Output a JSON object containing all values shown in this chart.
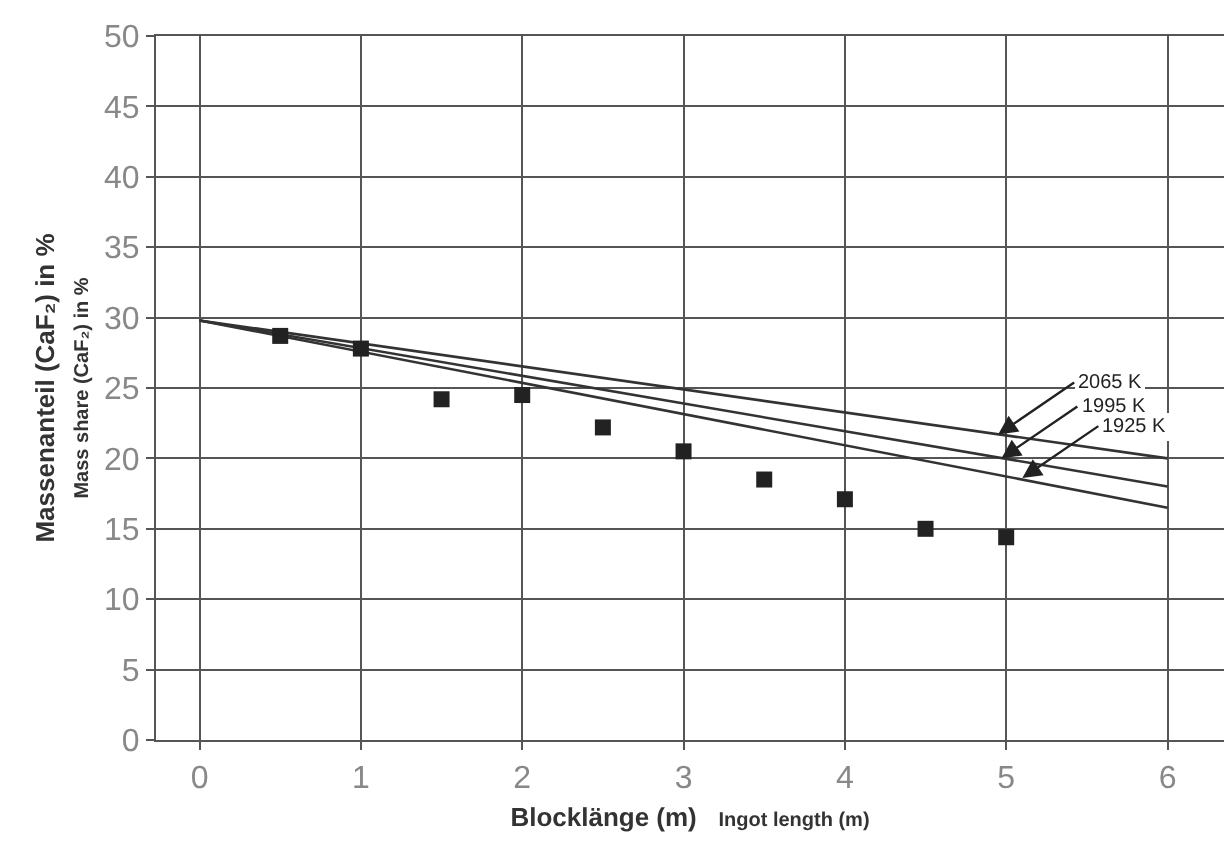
{
  "chart_data": {
    "type": "line",
    "xlabel": "Blocklänge (m)\nIngot length (m)",
    "ylabel": "Massenanteil (CaF₂) in %\nMass share (CaF₂) in %",
    "xlim": [
      -0.27,
      6.35
    ],
    "xticks": [
      0,
      1,
      2,
      3,
      4,
      5,
      6
    ],
    "ylim": [
      0,
      50
    ],
    "yticks": [
      0,
      5,
      10,
      15,
      20,
      25,
      30,
      35,
      40,
      45,
      50
    ],
    "grid": true,
    "series": [
      {
        "color": "#333333",
        "x": [
          0,
          6
        ],
        "values": [
          29.8,
          20
        ]
      },
      {
        "color": "#333333",
        "x": [
          0,
          6
        ],
        "values": [
          29.8,
          18
        ]
      },
      {
        "color": "#333333",
        "x": [
          0,
          6
        ],
        "values": [
          29.8,
          16.5
        ]
      },
      {
        "type": "scatter",
        "marker": "square",
        "color": "#222222",
        "x": [
          0.5,
          1,
          1.5,
          2,
          2.5,
          3,
          3.5,
          4,
          4.5,
          5
        ],
        "values": [
          28.7,
          27.8,
          24.2,
          24.5,
          22.2,
          20.5,
          18.5,
          17.1,
          15,
          14.4
        ]
      }
    ],
    "annotations": [
      {
        "text": "2065 K",
        "x": 4.95,
        "y": 21.7
      },
      {
        "text": "1995 K",
        "x": 4.97,
        "y": 20
      },
      {
        "text": "1925 K",
        "x": 5.1,
        "y": 18.6
      }
    ]
  }
}
